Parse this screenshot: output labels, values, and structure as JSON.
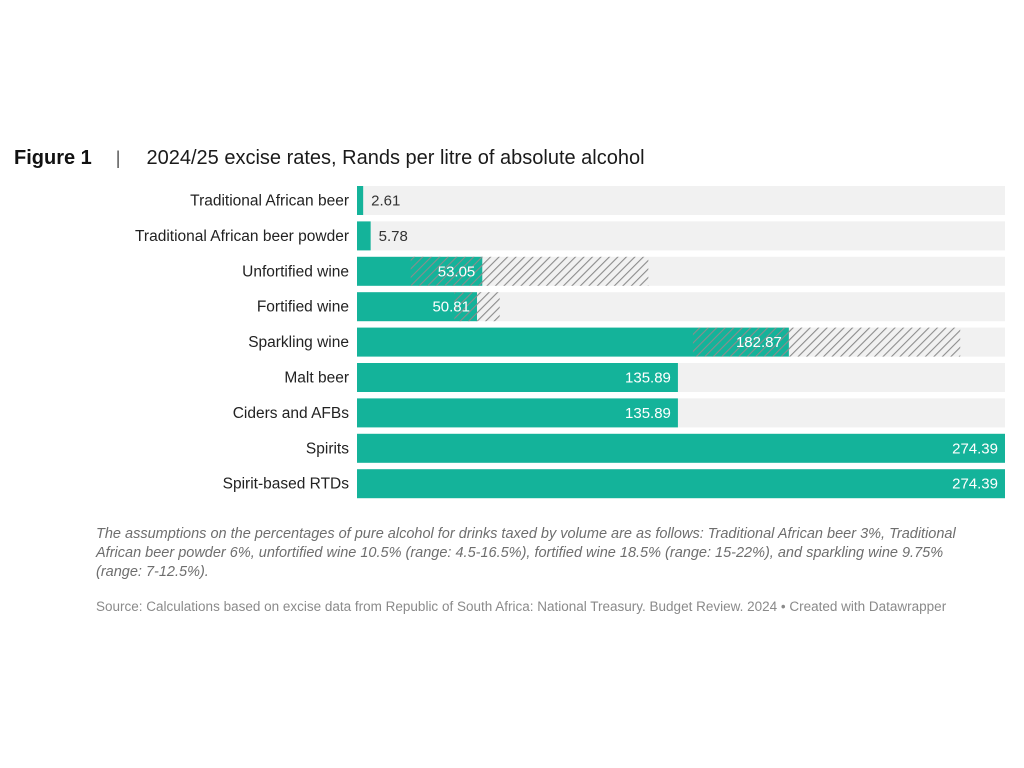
{
  "figure": {
    "label": "Figure 1",
    "separator": "|",
    "title": "2024/25 excise rates, Rands per litre of absolute alcohol"
  },
  "chart_data": {
    "type": "bar",
    "orientation": "horizontal",
    "title": "2024/25 excise rates, Rands per litre of absolute alcohol",
    "xlim": [
      0,
      274.39
    ],
    "grid": false,
    "legend": "none",
    "categories": [
      "Traditional African beer",
      "Traditional African beer powder",
      "Unfortified wine",
      "Fortified wine",
      "Sparkling wine",
      "Malt beer",
      "Ciders and AFBs",
      "Spirits",
      "Spirit-based RTDs"
    ],
    "values": [
      2.61,
      5.78,
      53.05,
      50.81,
      182.87,
      135.89,
      135.89,
      274.39,
      274.39
    ],
    "value_labels": [
      "2.61",
      "5.78",
      "53.05",
      "50.81",
      "182.87",
      "135.89",
      "135.89",
      "274.39",
      "274.39"
    ],
    "ranges": [
      null,
      null,
      [
        22.74,
        123.36
      ],
      [
        41.2,
        60.43
      ],
      [
        142.24,
        255.43
      ],
      null,
      null,
      null,
      null
    ],
    "colors": {
      "bar": "#14b39a",
      "track": "#f1f1f1",
      "hatch": "#8c8c8c"
    }
  },
  "notes": {
    "assumptions": "The assumptions on the percentages of pure alcohol for drinks taxed by volume are as follows: Traditional African beer 3%, Traditional African beer powder 6%, unfortified wine 10.5% (range: 4.5-16.5%), fortified wine 18.5% (range: 15-22%), and sparkling wine 9.75% (range: 7-12.5%).",
    "source": "Source: Calculations based on excise data from Republic of South Africa: National Treasury. Budget Review. 2024 • Created with Datawrapper"
  }
}
